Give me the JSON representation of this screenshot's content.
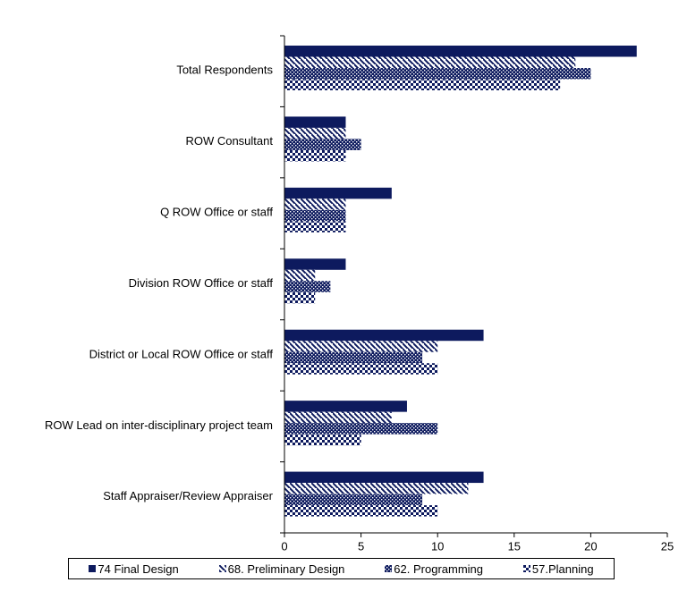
{
  "chart_data": {
    "type": "bar",
    "orientation": "horizontal",
    "categories": [
      "Total Respondents",
      "ROW Consultant",
      "Q ROW Office or staff",
      "Division ROW Office or staff",
      "District or Local ROW Office or staff",
      "ROW Lead on inter-disciplinary project team",
      "Staff Appraiser/Review Appraiser"
    ],
    "series": [
      {
        "name": "74 Final Design",
        "values": [
          23,
          4,
          7,
          4,
          13,
          8,
          13
        ],
        "pattern": "solid"
      },
      {
        "name": "68. Preliminary Design",
        "values": [
          19,
          4,
          4,
          2,
          10,
          7,
          12
        ],
        "pattern": "diagonal"
      },
      {
        "name": "62. Programming",
        "values": [
          20,
          5,
          4,
          3,
          9,
          10,
          9
        ],
        "pattern": "crosshatch"
      },
      {
        "name": "57.Planning",
        "values": [
          18,
          4,
          4,
          2,
          10,
          5,
          10
        ],
        "pattern": "checker"
      }
    ],
    "xlim": [
      0,
      25
    ],
    "xticks": [
      0,
      5,
      10,
      15,
      20,
      25
    ],
    "grid": false,
    "legend_position": "bottom",
    "color": "#0d1a5e"
  }
}
